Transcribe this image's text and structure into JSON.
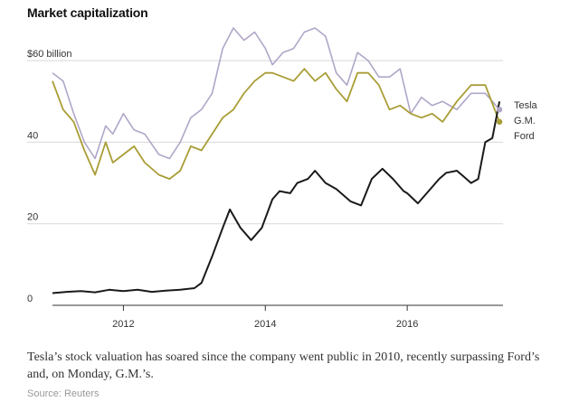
{
  "title": "Market capitalization",
  "caption": "Tesla’s stock valuation has soared since the company went public in 2010, recently surpassing Ford’s and, on Monday, G.M.’s.",
  "source": "Source: Reuters",
  "colors": {
    "Tesla": "#1a1a1a",
    "G.M.": "#b0a6c8",
    "Ford": "#a99d36",
    "grid": "#d8d8d8",
    "axis": "#333333"
  },
  "chart_data": {
    "type": "line",
    "title": "Market capitalization",
    "xlabel": "",
    "ylabel": "",
    "xlim": [
      2011.0,
      2017.35
    ],
    "ylim": [
      0,
      70
    ],
    "yticks": [
      0,
      20,
      40,
      60
    ],
    "ytick_labels": [
      "0",
      "20",
      "40",
      "$60 billion"
    ],
    "xticks": [
      2012,
      2014,
      2016
    ],
    "xtick_labels": [
      "2012",
      "2014",
      "2016"
    ],
    "grid": "horizontal",
    "legend": "right end of lines",
    "series": [
      {
        "name": "Tesla",
        "x": [
          2011.0,
          2011.2,
          2011.4,
          2011.6,
          2011.8,
          2012.0,
          2012.2,
          2012.4,
          2012.6,
          2012.8,
          2013.0,
          2013.1,
          2013.25,
          2013.4,
          2013.5,
          2013.65,
          2013.8,
          2013.95,
          2014.1,
          2014.2,
          2014.35,
          2014.45,
          2014.6,
          2014.7,
          2014.85,
          2015.0,
          2015.2,
          2015.35,
          2015.5,
          2015.65,
          2015.8,
          2015.95,
          2016.0,
          2016.15,
          2016.3,
          2016.45,
          2016.55,
          2016.7,
          2016.8,
          2016.9,
          2017.0,
          2017.1,
          2017.2,
          2017.3
        ],
        "values": [
          3,
          3.3,
          3.5,
          3.2,
          3.8,
          3.5,
          3.8,
          3.3,
          3.6,
          3.8,
          4.2,
          5.5,
          12,
          19,
          23.5,
          19,
          16,
          19,
          26,
          28,
          27.5,
          30,
          31,
          33,
          30,
          28.5,
          25.5,
          24.5,
          31,
          33.5,
          31,
          28,
          27.5,
          25,
          28,
          31,
          32.5,
          33,
          31.5,
          30,
          31,
          40,
          41,
          50
        ]
      },
      {
        "name": "G.M.",
        "x": [
          2011.0,
          2011.15,
          2011.3,
          2011.45,
          2011.6,
          2011.75,
          2011.85,
          2012.0,
          2012.15,
          2012.3,
          2012.5,
          2012.65,
          2012.8,
          2012.95,
          2013.1,
          2013.25,
          2013.4,
          2013.55,
          2013.7,
          2013.85,
          2014.0,
          2014.1,
          2014.25,
          2014.4,
          2014.55,
          2014.7,
          2014.85,
          2015.0,
          2015.15,
          2015.3,
          2015.45,
          2015.6,
          2015.75,
          2015.9,
          2016.05,
          2016.2,
          2016.35,
          2016.5,
          2016.7,
          2016.9,
          2017.1,
          2017.3
        ],
        "values": [
          57,
          55,
          47,
          40,
          36,
          44,
          42,
          47,
          43,
          42,
          37,
          36,
          40,
          46,
          48,
          52,
          63,
          68,
          65,
          67,
          63,
          59,
          62,
          63,
          67,
          68,
          66,
          57,
          54,
          62,
          60,
          56,
          56,
          58,
          47,
          51,
          49,
          50,
          48,
          52,
          52,
          48
        ]
      },
      {
        "name": "Ford",
        "x": [
          2011.0,
          2011.15,
          2011.3,
          2011.45,
          2011.6,
          2011.75,
          2011.85,
          2012.0,
          2012.15,
          2012.3,
          2012.5,
          2012.65,
          2012.8,
          2012.95,
          2013.1,
          2013.25,
          2013.4,
          2013.55,
          2013.7,
          2013.85,
          2014.0,
          2014.1,
          2014.25,
          2014.4,
          2014.55,
          2014.7,
          2014.85,
          2015.0,
          2015.15,
          2015.3,
          2015.45,
          2015.6,
          2015.75,
          2015.9,
          2016.05,
          2016.2,
          2016.35,
          2016.5,
          2016.7,
          2016.9,
          2017.1,
          2017.3
        ],
        "values": [
          55,
          48,
          45,
          38,
          32,
          40,
          35,
          37,
          39,
          35,
          32,
          31,
          33,
          39,
          38,
          42,
          46,
          48,
          52,
          55,
          57,
          57,
          56,
          55,
          58,
          55,
          57,
          53,
          50,
          57,
          57,
          54,
          48,
          49,
          47,
          46,
          47,
          45,
          50,
          54,
          54,
          45
        ]
      }
    ]
  }
}
